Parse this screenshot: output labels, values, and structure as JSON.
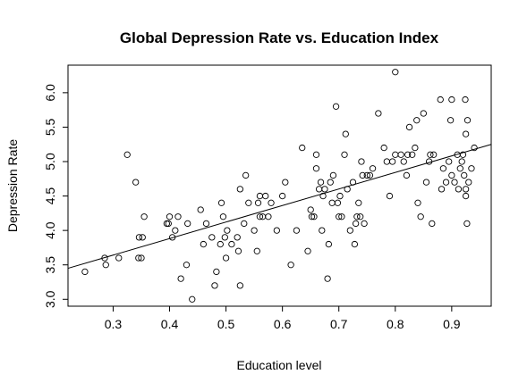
{
  "chart_data": {
    "type": "scatter",
    "title": "Global Depression Rate vs. Education Index",
    "xlabel": "Education level",
    "ylabel": "Depression Rate",
    "xlim": [
      0.22,
      0.97
    ],
    "ylim": [
      2.9,
      6.4
    ],
    "xticks": [
      "0.3",
      "0.4",
      "0.5",
      "0.6",
      "0.7",
      "0.8",
      "0.9"
    ],
    "yticks": [
      "3.0",
      "3.5",
      "4.0",
      "4.5",
      "5.0",
      "5.5",
      "6.0"
    ],
    "grid": false,
    "regression_line": {
      "x": [
        0.22,
        0.97
      ],
      "y": [
        3.45,
        5.25
      ]
    },
    "points": [
      [
        0.25,
        3.4
      ],
      [
        0.285,
        3.6
      ],
      [
        0.287,
        3.5
      ],
      [
        0.31,
        3.6
      ],
      [
        0.325,
        5.1
      ],
      [
        0.34,
        4.7
      ],
      [
        0.345,
        3.6
      ],
      [
        0.35,
        3.6
      ],
      [
        0.346,
        3.9
      ],
      [
        0.352,
        3.9
      ],
      [
        0.355,
        4.2
      ],
      [
        0.395,
        4.1
      ],
      [
        0.398,
        4.1
      ],
      [
        0.4,
        4.2
      ],
      [
        0.405,
        3.9
      ],
      [
        0.41,
        4.0
      ],
      [
        0.415,
        4.2
      ],
      [
        0.42,
        3.3
      ],
      [
        0.43,
        3.5
      ],
      [
        0.432,
        4.1
      ],
      [
        0.44,
        3.0
      ],
      [
        0.455,
        4.3
      ],
      [
        0.46,
        3.8
      ],
      [
        0.465,
        4.1
      ],
      [
        0.475,
        3.9
      ],
      [
        0.48,
        3.2
      ],
      [
        0.483,
        3.4
      ],
      [
        0.49,
        3.8
      ],
      [
        0.492,
        4.4
      ],
      [
        0.495,
        4.2
      ],
      [
        0.498,
        3.9
      ],
      [
        0.5,
        3.6
      ],
      [
        0.502,
        4.0
      ],
      [
        0.51,
        3.8
      ],
      [
        0.52,
        3.9
      ],
      [
        0.525,
        3.2
      ],
      [
        0.522,
        3.7
      ],
      [
        0.525,
        4.6
      ],
      [
        0.532,
        4.1
      ],
      [
        0.535,
        4.8
      ],
      [
        0.54,
        4.4
      ],
      [
        0.55,
        4.0
      ],
      [
        0.555,
        3.7
      ],
      [
        0.557,
        4.4
      ],
      [
        0.56,
        4.2
      ],
      [
        0.56,
        4.5
      ],
      [
        0.565,
        4.2
      ],
      [
        0.57,
        4.5
      ],
      [
        0.575,
        4.2
      ],
      [
        0.58,
        4.4
      ],
      [
        0.59,
        4.0
      ],
      [
        0.6,
        4.5
      ],
      [
        0.605,
        4.7
      ],
      [
        0.615,
        3.5
      ],
      [
        0.625,
        4.0
      ],
      [
        0.635,
        5.2
      ],
      [
        0.645,
        3.7
      ],
      [
        0.65,
        4.3
      ],
      [
        0.652,
        4.2
      ],
      [
        0.656,
        4.2
      ],
      [
        0.66,
        5.1
      ],
      [
        0.66,
        4.9
      ],
      [
        0.665,
        4.6
      ],
      [
        0.668,
        4.7
      ],
      [
        0.67,
        4.0
      ],
      [
        0.672,
        4.5
      ],
      [
        0.675,
        4.6
      ],
      [
        0.68,
        3.3
      ],
      [
        0.682,
        3.8
      ],
      [
        0.685,
        4.7
      ],
      [
        0.688,
        4.4
      ],
      [
        0.69,
        4.8
      ],
      [
        0.695,
        5.8
      ],
      [
        0.698,
        4.4
      ],
      [
        0.7,
        4.2
      ],
      [
        0.702,
        4.5
      ],
      [
        0.705,
        4.2
      ],
      [
        0.71,
        5.1
      ],
      [
        0.712,
        5.4
      ],
      [
        0.715,
        4.6
      ],
      [
        0.72,
        4.0
      ],
      [
        0.725,
        4.7
      ],
      [
        0.728,
        3.8
      ],
      [
        0.73,
        4.1
      ],
      [
        0.732,
        4.2
      ],
      [
        0.735,
        4.4
      ],
      [
        0.738,
        4.2
      ],
      [
        0.74,
        5.0
      ],
      [
        0.742,
        4.8
      ],
      [
        0.745,
        4.1
      ],
      [
        0.75,
        4.8
      ],
      [
        0.755,
        4.8
      ],
      [
        0.76,
        4.9
      ],
      [
        0.77,
        5.7
      ],
      [
        0.78,
        5.2
      ],
      [
        0.785,
        5.0
      ],
      [
        0.79,
        4.5
      ],
      [
        0.795,
        5.0
      ],
      [
        0.8,
        5.1
      ],
      [
        0.8,
        6.3
      ],
      [
        0.81,
        5.1
      ],
      [
        0.815,
        5.0
      ],
      [
        0.82,
        4.8
      ],
      [
        0.822,
        5.1
      ],
      [
        0.825,
        5.5
      ],
      [
        0.83,
        5.1
      ],
      [
        0.835,
        5.2
      ],
      [
        0.838,
        5.6
      ],
      [
        0.84,
        4.4
      ],
      [
        0.845,
        4.2
      ],
      [
        0.85,
        5.7
      ],
      [
        0.855,
        4.7
      ],
      [
        0.86,
        5.0
      ],
      [
        0.862,
        5.1
      ],
      [
        0.865,
        4.1
      ],
      [
        0.868,
        5.1
      ],
      [
        0.88,
        5.9
      ],
      [
        0.882,
        4.6
      ],
      [
        0.885,
        4.9
      ],
      [
        0.89,
        4.7
      ],
      [
        0.895,
        5.0
      ],
      [
        0.898,
        5.6
      ],
      [
        0.9,
        5.9
      ],
      [
        0.9,
        4.8
      ],
      [
        0.905,
        4.7
      ],
      [
        0.91,
        5.1
      ],
      [
        0.912,
        4.6
      ],
      [
        0.915,
        4.9
      ],
      [
        0.918,
        5.0
      ],
      [
        0.92,
        5.1
      ],
      [
        0.922,
        4.8
      ],
      [
        0.924,
        5.9
      ],
      [
        0.925,
        4.6
      ],
      [
        0.925,
        4.5
      ],
      [
        0.925,
        5.4
      ],
      [
        0.927,
        4.1
      ],
      [
        0.928,
        5.6
      ],
      [
        0.93,
        4.7
      ],
      [
        0.935,
        4.9
      ],
      [
        0.94,
        5.2
      ]
    ]
  }
}
